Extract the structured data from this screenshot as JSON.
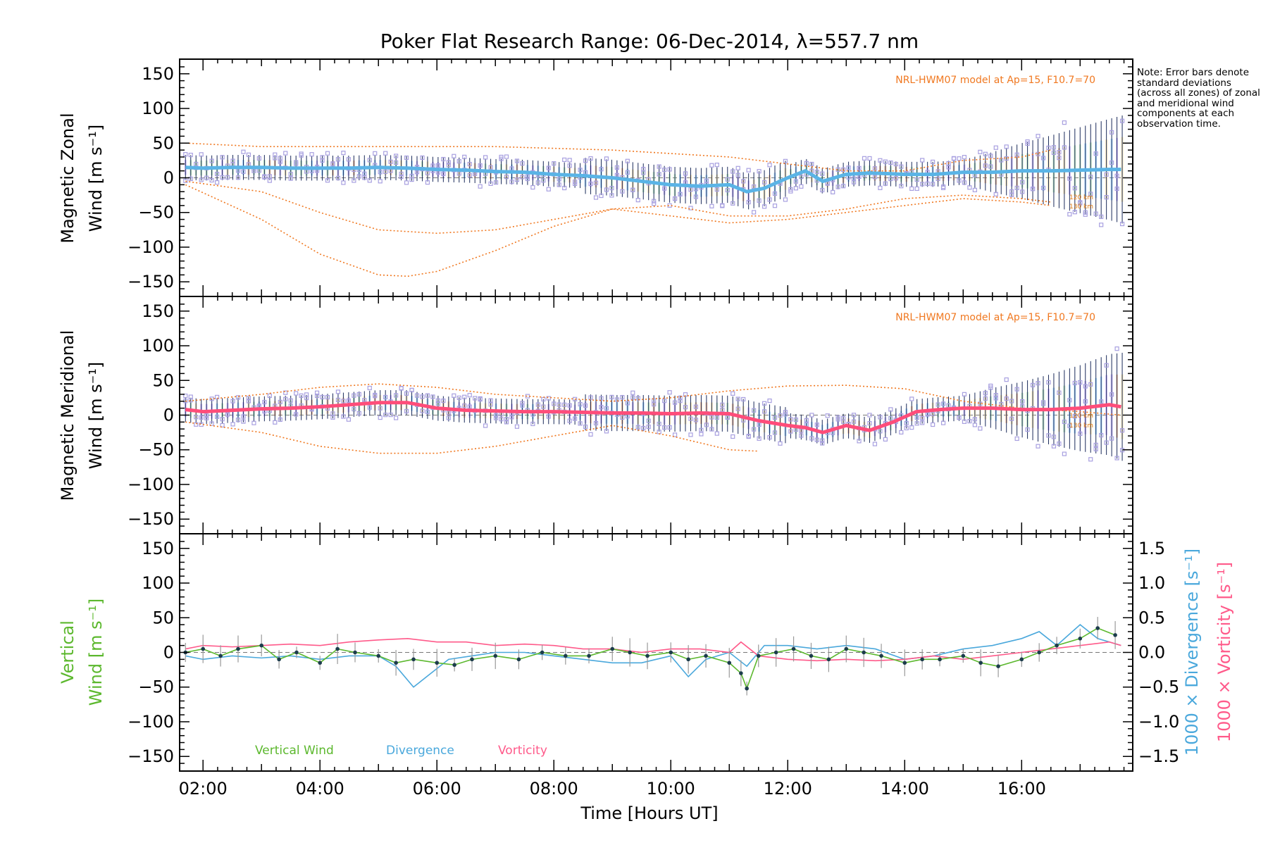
{
  "chart_data": [
    {
      "panel": "zonal",
      "type": "line",
      "title": "Poker Flat Research Range: 06-Dec-2014, λ=557.7 nm",
      "ylabel_line1": "Magnetic Zonal",
      "ylabel_line2": "Wind [m s⁻¹]",
      "ylim": [
        -165,
        165
      ],
      "y_ticks": [
        "150",
        "100",
        "50",
        "0",
        "−50",
        "−100",
        "−150"
      ],
      "model_label": "NRL-HWM07 model at Ap=15, F10.7=70",
      "model_altitudes": [
        "120 km",
        "130 km"
      ],
      "series": [
        {
          "name": "mean",
          "color": "#5ab4e6",
          "x": [
            1.7,
            2,
            2.5,
            3,
            3.5,
            4,
            4.5,
            5,
            5.5,
            6,
            6.5,
            7,
            7.5,
            8,
            8.5,
            9,
            9.5,
            10,
            10.5,
            11,
            11.3,
            11.6,
            12,
            12.3,
            12.6,
            13,
            13.4,
            14,
            14.5,
            15,
            15.5,
            16,
            16.5,
            17,
            17.5,
            17.7
          ],
          "values": [
            15,
            14,
            15,
            15,
            14,
            14,
            14,
            15,
            14,
            12,
            11,
            9,
            8,
            5,
            3,
            0,
            -5,
            -10,
            -12,
            -10,
            -20,
            -15,
            0,
            10,
            -5,
            5,
            7,
            5,
            5,
            8,
            8,
            10,
            10,
            11,
            12,
            12
          ]
        },
        {
          "name": "model 120 km",
          "color": "#f07820",
          "x": [
            1.7,
            3,
            4,
            5,
            6,
            7,
            8,
            9,
            10,
            11,
            12,
            13,
            14,
            15,
            16,
            16.5
          ],
          "values": [
            -5,
            -20,
            -50,
            -75,
            -80,
            -75,
            -60,
            -45,
            -55,
            -65,
            -60,
            -50,
            -40,
            -30,
            -35,
            -40
          ]
        },
        {
          "name": "model 130 km",
          "color": "#f07820",
          "x": [
            1.7,
            3,
            4,
            5,
            5.5,
            6,
            7,
            8,
            9,
            10,
            11,
            12,
            13,
            14,
            15,
            16,
            16.5
          ],
          "values": [
            -10,
            -60,
            -110,
            -140,
            -142,
            -135,
            -105,
            -70,
            -45,
            -40,
            -55,
            -55,
            -45,
            -30,
            -25,
            -30,
            -35
          ]
        },
        {
          "name": "model upper",
          "color": "#f07820",
          "x": [
            1.7,
            3,
            5,
            7,
            9,
            11,
            12,
            13,
            14,
            15,
            16,
            16.5
          ],
          "values": [
            50,
            45,
            45,
            45,
            40,
            30,
            20,
            10,
            10,
            25,
            30,
            40
          ]
        }
      ]
    },
    {
      "panel": "meridional",
      "type": "line",
      "ylabel_line1": "Magnetic Meridional",
      "ylabel_line2": "Wind [m s⁻¹]",
      "ylim": [
        -165,
        165
      ],
      "y_ticks": [
        "150",
        "100",
        "50",
        "0",
        "−50",
        "−100",
        "−150"
      ],
      "model_label": "NRL-HWM07 model at Ap=15, F10.7=70",
      "model_altitudes": [
        "120 km",
        "130 km"
      ],
      "series": [
        {
          "name": "mean",
          "color": "#ff4d7a",
          "x": [
            1.7,
            2,
            2.5,
            3,
            3.5,
            4,
            4.5,
            5,
            5.5,
            6,
            6.5,
            7,
            7.5,
            8,
            8.5,
            9,
            9.5,
            10,
            10.5,
            11,
            11.5,
            12,
            12.3,
            12.6,
            13,
            13.4,
            13.8,
            14.2,
            14.6,
            15,
            15.5,
            16,
            16.5,
            17,
            17.5,
            17.7
          ],
          "values": [
            8,
            5,
            7,
            9,
            10,
            12,
            15,
            18,
            18,
            10,
            7,
            6,
            5,
            5,
            4,
            3,
            3,
            2,
            3,
            2,
            -8,
            -15,
            -18,
            -25,
            -15,
            -22,
            -10,
            5,
            8,
            10,
            10,
            8,
            8,
            10,
            15,
            12
          ]
        },
        {
          "name": "model 120 km",
          "color": "#f07820",
          "x": [
            1.7,
            3,
            4,
            5,
            6,
            7,
            8,
            9,
            10,
            11,
            11.5
          ],
          "values": [
            -10,
            -25,
            -45,
            -55,
            -55,
            -45,
            -30,
            -15,
            -30,
            -50,
            -52
          ]
        },
        {
          "name": "model 130 km",
          "color": "#f07820",
          "x": [
            1.7,
            3,
            4,
            5,
            6,
            7,
            8,
            9,
            10,
            11,
            12,
            13,
            14,
            15,
            16,
            17,
            17.7
          ],
          "values": [
            20,
            30,
            40,
            45,
            40,
            30,
            25,
            20,
            25,
            35,
            42,
            43,
            38,
            20,
            10,
            5,
            0
          ]
        }
      ]
    },
    {
      "panel": "vertical",
      "type": "line",
      "ylabel_line1": "Vertical",
      "ylabel_line2": "Wind [m s⁻¹]",
      "ylim": [
        -165,
        165
      ],
      "y_ticks": [
        "150",
        "100",
        "50",
        "0",
        "−50",
        "−100",
        "−150"
      ],
      "y2_ticks": [
        "1.5",
        "1.0",
        "0.5",
        "0.0",
        "−0.5",
        "−1.0",
        "−1.5"
      ],
      "y2_label": "1000 × Divergence [s⁻¹]",
      "y3_label": "1000 × Vorticity [s⁻¹]",
      "xlabel": "Time [Hours UT]",
      "x_ticks": [
        "02:00",
        "04:00",
        "06:00",
        "08:00",
        "10:00",
        "12:00",
        "14:00",
        "16:00"
      ],
      "xlim": [
        1.6,
        17.9
      ],
      "legend": [
        "Vertical Wind",
        "Divergence",
        "Vorticity"
      ],
      "series": [
        {
          "name": "Vertical Wind",
          "color": "#5cb82e",
          "x": [
            1.7,
            2,
            2.3,
            2.6,
            3,
            3.3,
            3.6,
            4,
            4.3,
            4.6,
            5,
            5.3,
            5.6,
            6,
            6.3,
            6.6,
            7,
            7.4,
            7.8,
            8.2,
            8.6,
            9,
            9.3,
            9.6,
            10,
            10.3,
            10.6,
            11,
            11.2,
            11.3,
            11.5,
            11.8,
            12.1,
            12.4,
            12.7,
            13,
            13.3,
            13.6,
            14,
            14.3,
            14.6,
            15,
            15.3,
            15.6,
            16,
            16.3,
            16.6,
            17,
            17.3,
            17.6
          ],
          "values": [
            0,
            5,
            -5,
            5,
            10,
            -10,
            0,
            -15,
            5,
            0,
            -5,
            -15,
            -10,
            -15,
            -18,
            -10,
            -5,
            -10,
            0,
            -5,
            -5,
            5,
            0,
            -5,
            0,
            -10,
            -5,
            -15,
            -30,
            -52,
            -5,
            0,
            5,
            -5,
            -10,
            5,
            0,
            -5,
            -15,
            -10,
            -10,
            -5,
            -15,
            -20,
            -10,
            0,
            10,
            20,
            35,
            25
          ]
        },
        {
          "name": "Divergence",
          "color": "#4aa8dc",
          "x": [
            1.7,
            2,
            2.5,
            3,
            3.5,
            4,
            4.5,
            5,
            5.3,
            5.6,
            5.9,
            6.2,
            6.6,
            7,
            7.5,
            8,
            8.5,
            9,
            9.5,
            10,
            10.3,
            10.6,
            11,
            11.3,
            11.6,
            12,
            12.5,
            13,
            13.5,
            14,
            14.5,
            15,
            15.5,
            16,
            16.3,
            16.6,
            17,
            17.3,
            17.7
          ],
          "values": [
            -0.05,
            -0.1,
            -0.05,
            -0.08,
            -0.05,
            -0.1,
            -0.05,
            -0.05,
            -0.2,
            -0.5,
            -0.3,
            -0.1,
            -0.05,
            0,
            0,
            -0.05,
            -0.1,
            -0.15,
            -0.15,
            -0.05,
            -0.35,
            -0.1,
            0,
            -0.2,
            0.1,
            0.1,
            0.05,
            0.1,
            0.05,
            -0.1,
            -0.05,
            0.05,
            0.1,
            0.2,
            0.3,
            0.1,
            0.4,
            0.2,
            0.1
          ]
        },
        {
          "name": "Vorticity",
          "color": "#ff5a8a",
          "x": [
            1.7,
            2,
            2.5,
            3,
            3.5,
            4,
            4.5,
            5,
            5.5,
            6,
            6.5,
            7,
            7.5,
            8,
            8.5,
            9,
            9.5,
            10,
            10.5,
            11,
            11.2,
            11.5,
            12,
            12.5,
            13,
            13.5,
            14,
            14.5,
            15,
            15.5,
            16,
            16.5,
            17,
            17.5,
            17.7
          ],
          "values": [
            0.05,
            0.1,
            0.08,
            0.1,
            0.12,
            0.1,
            0.15,
            0.18,
            0.2,
            0.15,
            0.15,
            0.1,
            0.12,
            0.1,
            0.05,
            0.05,
            0,
            0.05,
            0.05,
            0,
            0.15,
            -0.05,
            -0.1,
            -0.12,
            -0.1,
            -0.12,
            -0.1,
            -0.05,
            -0.1,
            -0.05,
            0,
            0.05,
            0.1,
            0.15,
            0.1
          ]
        }
      ]
    }
  ],
  "note": "Note: Error bars denote standard deviations (across all zones) of zonal and meridional wind components at each observation time."
}
